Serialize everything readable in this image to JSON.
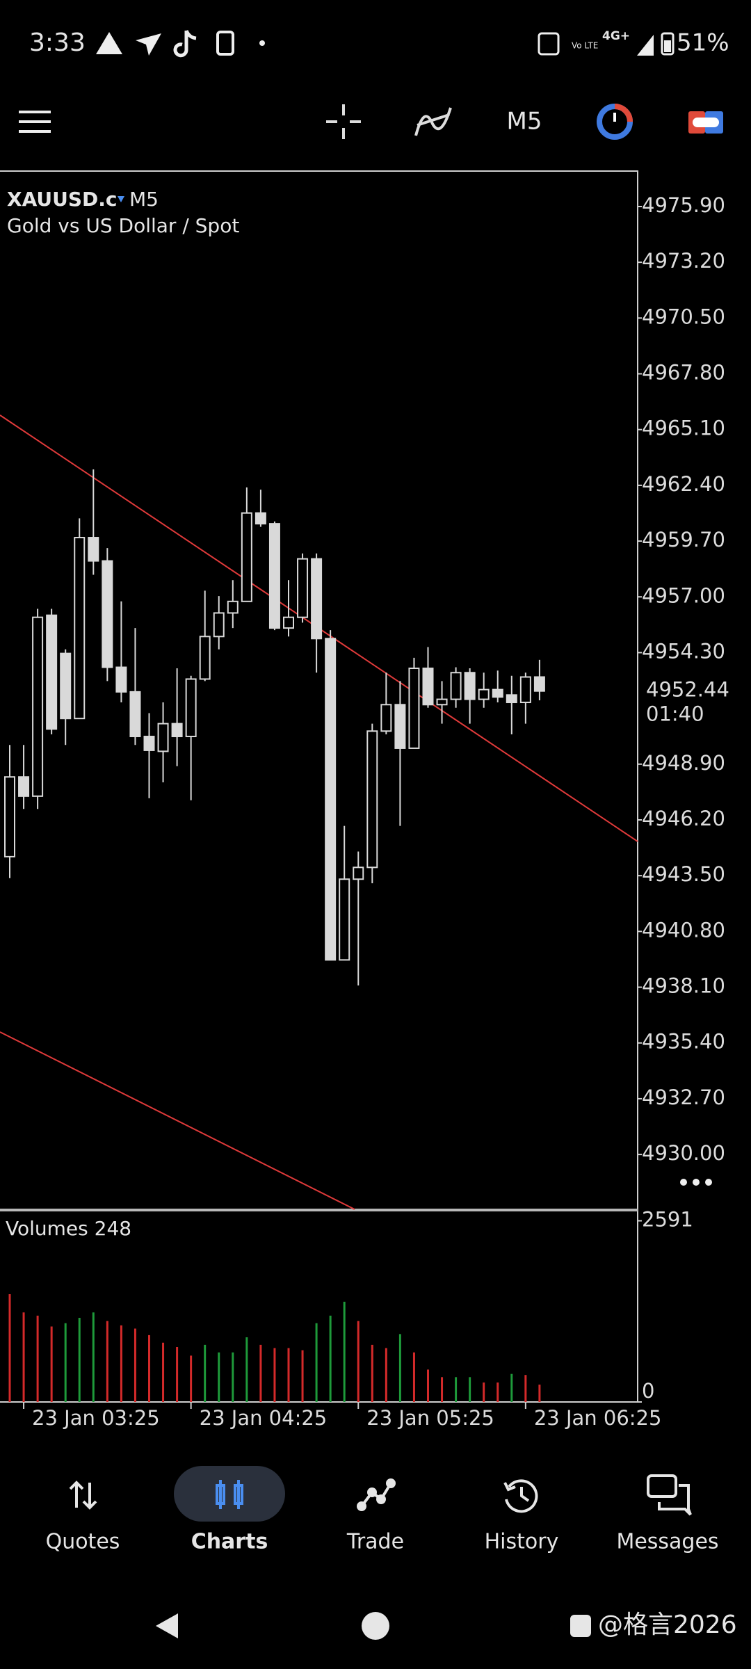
{
  "status_bar": {
    "time": "3:33",
    "volte": "Vo LTE",
    "network": "4G+",
    "battery": "51%"
  },
  "toolbar": {
    "timeframe": "M5"
  },
  "chart_header": {
    "symbol": "XAUUSD.c",
    "timeframe": "M5",
    "description": "Gold vs US Dollar / Spot"
  },
  "chart_data": [
    {
      "type": "candlestick",
      "categories": [
        null,
        "23 Jan 03:25",
        null,
        null,
        null,
        null,
        null,
        null,
        null,
        null,
        null,
        null,
        null,
        "23 Jan 04:25",
        null,
        null,
        null,
        null,
        null,
        null,
        null,
        null,
        null,
        null,
        null,
        "23 Jan 05:25",
        null,
        null,
        null,
        null,
        null,
        null,
        null,
        null,
        null,
        null,
        null,
        "23 Jan 06:25",
        null
      ],
      "open": [
        4944.42,
        4948.28,
        4947.35,
        4956.11,
        4954.26,
        4951.11,
        4959.87,
        4958.74,
        4953.59,
        4952.4,
        4950.24,
        4949.52,
        4950.86,
        4950.24,
        4953.02,
        4955.08,
        4956.22,
        4956.78,
        4961.06,
        4960.54,
        4955.49,
        4956.01,
        4958.84,
        4954.98,
        4939.42,
        4943.33,
        4943.9,
        4950.5,
        4951.78,
        4949.67,
        4953.54,
        4951.78,
        4952.04,
        4953.33,
        4952.04,
        4952.51,
        4952.25,
        4951.89,
        4953.12
      ],
      "high": [
        4949.83,
        4949.83,
        4956.42,
        4956.42,
        4954.46,
        4960.8,
        4963.17,
        4959.36,
        4956.78,
        4955.49,
        4951.37,
        4951.89,
        4953.54,
        4953.18,
        4957.3,
        4957.04,
        4957.81,
        4962.3,
        4962.19,
        4960.65,
        4957.81,
        4959.1,
        4959.1,
        4955.39,
        4945.91,
        4944.67,
        4950.86,
        4953.33,
        4952.92,
        4954.05,
        4954.57,
        4952.92,
        4953.59,
        4953.54,
        4953.33,
        4953.43,
        4953.18,
        4953.33,
        4953.95
      ],
      "low": [
        4943.38,
        4946.73,
        4946.73,
        4950.34,
        4949.83,
        4951.11,
        4958.07,
        4952.92,
        4951.89,
        4949.83,
        4947.25,
        4948.02,
        4948.8,
        4947.15,
        4952.92,
        4954.46,
        4955.49,
        4956.78,
        4960.39,
        4955.39,
        4955.08,
        4955.75,
        4953.33,
        4939.42,
        4939.42,
        4938.18,
        4943.13,
        4950.34,
        4945.91,
        4949.67,
        4951.63,
        4950.86,
        4951.63,
        4950.86,
        4951.63,
        4951.89,
        4950.34,
        4950.86,
        4951.99
      ],
      "close": [
        4948.28,
        4947.35,
        4956.01,
        4950.6,
        4951.11,
        4959.87,
        4958.74,
        4953.59,
        4952.4,
        4950.24,
        4949.57,
        4950.86,
        4950.24,
        4953.02,
        4955.08,
        4956.22,
        4956.78,
        4961.06,
        4960.54,
        4955.49,
        4956.01,
        4958.84,
        4954.98,
        4939.42,
        4943.33,
        4943.9,
        4950.5,
        4951.78,
        4949.67,
        4953.54,
        4951.78,
        4952.04,
        4953.33,
        4952.04,
        4952.51,
        4952.15,
        4951.89,
        4953.12,
        4952.44
      ],
      "color": "#d9d9d9",
      "ylim": [
        4927.31,
        4977.65
      ],
      "yticks": [
        {
          "value": 4975.9,
          "label": "4975.90"
        },
        {
          "value": 4973.2,
          "label": "4973.20"
        },
        {
          "value": 4970.5,
          "label": "4970.50"
        },
        {
          "value": 4967.8,
          "label": "4967.80"
        },
        {
          "value": 4965.1,
          "label": "4965.10"
        },
        {
          "value": 4962.4,
          "label": "4962.40"
        },
        {
          "value": 4959.7,
          "label": "4959.70"
        },
        {
          "value": 4957.0,
          "label": "4957.00"
        },
        {
          "value": 4954.3,
          "label": "4954.30"
        },
        {
          "value": 4948.9,
          "label": "4948.90"
        },
        {
          "value": 4946.2,
          "label": "4946.20"
        },
        {
          "value": 4943.5,
          "label": "4943.50"
        },
        {
          "value": 4940.8,
          "label": "4940.80"
        },
        {
          "value": 4938.1,
          "label": "4938.10"
        },
        {
          "value": 4935.4,
          "label": "4935.40"
        },
        {
          "value": 4932.7,
          "label": "4932.70"
        },
        {
          "value": 4930.0,
          "label": "4930.00"
        }
      ],
      "last_price": {
        "value": 4952.44,
        "label": "4952.44"
      },
      "countdown": "01:40"
    },
    {
      "type": "bar",
      "title": "Volumes 248",
      "values": [
        1542,
        1280,
        1234,
        1079,
        1126,
        1203,
        1280,
        1157,
        1095,
        1049,
        956,
        848,
        786,
        663,
        817,
        709,
        709,
        925,
        817,
        771,
        771,
        740,
        1126,
        1234,
        1434,
        1157,
        817,
        771,
        971,
        709,
        463,
        355,
        355,
        355,
        278,
        278,
        401,
        386,
        248
      ],
      "colors": [
        "#d42a2a",
        "#d42a2a",
        "#d42a2a",
        "#d42a2a",
        "#1e9a3a",
        "#1e9a3a",
        "#1e9a3a",
        "#d42a2a",
        "#d42a2a",
        "#d42a2a",
        "#d42a2a",
        "#d42a2a",
        "#d42a2a",
        "#d42a2a",
        "#1e9a3a",
        "#1e9a3a",
        "#1e9a3a",
        "#1e9a3a",
        "#d42a2a",
        "#d42a2a",
        "#d42a2a",
        "#d42a2a",
        "#1e9a3a",
        "#1e9a3a",
        "#1e9a3a",
        "#d42a2a",
        "#d42a2a",
        "#d42a2a",
        "#1e9a3a",
        "#d42a2a",
        "#d42a2a",
        "#d42a2a",
        "#1e9a3a",
        "#1e9a3a",
        "#d42a2a",
        "#d42a2a",
        "#1e9a3a",
        "#d42a2a",
        "#d42a2a"
      ],
      "ylim": [
        0,
        2745
      ],
      "yticks": [
        0,
        2591
      ]
    }
  ],
  "nav": {
    "items": [
      "Quotes",
      "Charts",
      "Trade",
      "History",
      "Messages"
    ]
  },
  "watermark": "@格言2026"
}
